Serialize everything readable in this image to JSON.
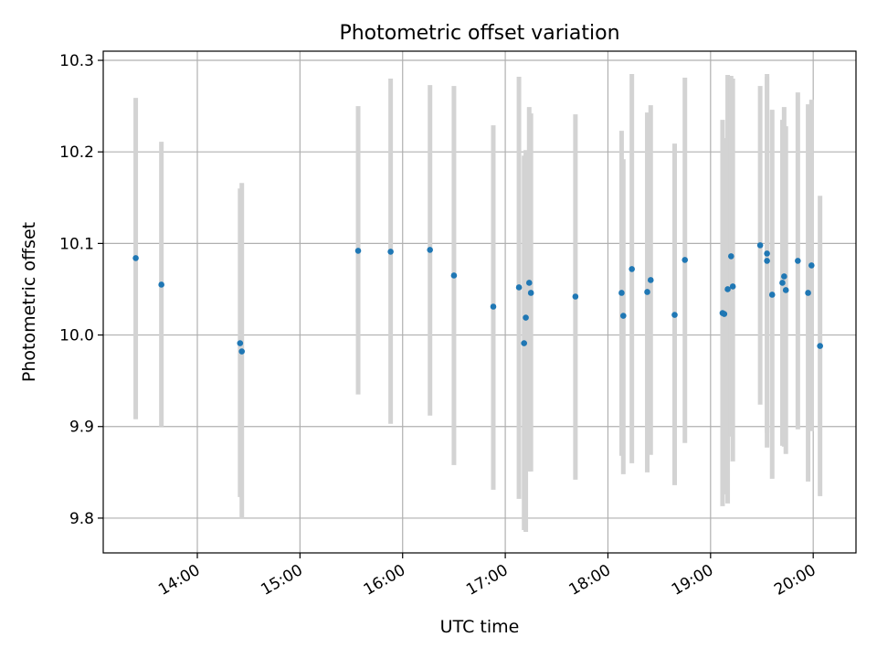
{
  "chart_data": {
    "type": "scatter",
    "title": "Photometric offset variation",
    "xlabel": "UTC time",
    "ylabel": "Photometric offset",
    "grid": true,
    "xlim": [
      "13:05",
      "20:25"
    ],
    "ylim": [
      9.762,
      10.31
    ],
    "x_ticks": [
      "14:00",
      "15:00",
      "16:00",
      "17:00",
      "18:00",
      "19:00",
      "20:00"
    ],
    "y_ticks": [
      9.8,
      9.9,
      10.0,
      10.1,
      10.2,
      10.3
    ],
    "y_tick_labels": [
      "9.8",
      "9.9",
      "10.0",
      "10.1",
      "10.2",
      "10.3"
    ],
    "marker_color": "#1f77b4",
    "errorbar_color": "#d3d3d3",
    "points": [
      {
        "x": "13:24",
        "y": 10.084,
        "ylow": 9.908,
        "yhigh": 10.259
      },
      {
        "x": "13:39",
        "y": 10.055,
        "ylow": 9.9,
        "yhigh": 10.211
      },
      {
        "x": "14:25",
        "y": 9.991,
        "ylow": 9.823,
        "yhigh": 10.16
      },
      {
        "x": "14:26",
        "y": 9.982,
        "ylow": 9.799,
        "yhigh": 10.166
      },
      {
        "x": "15:34",
        "y": 10.092,
        "ylow": 9.935,
        "yhigh": 10.25
      },
      {
        "x": "15:53",
        "y": 10.091,
        "ylow": 9.903,
        "yhigh": 10.28
      },
      {
        "x": "16:16",
        "y": 10.093,
        "ylow": 9.912,
        "yhigh": 10.273
      },
      {
        "x": "16:30",
        "y": 10.065,
        "ylow": 9.858,
        "yhigh": 10.272
      },
      {
        "x": "16:53",
        "y": 10.031,
        "ylow": 9.831,
        "yhigh": 10.229
      },
      {
        "x": "17:08",
        "y": 10.052,
        "ylow": 9.821,
        "yhigh": 10.282
      },
      {
        "x": "17:11",
        "y": 9.991,
        "ylow": 9.787,
        "yhigh": 10.196
      },
      {
        "x": "17:12",
        "y": 10.019,
        "ylow": 9.785,
        "yhigh": 10.202
      },
      {
        "x": "17:14",
        "y": 10.057,
        "ylow": 9.851,
        "yhigh": 10.249
      },
      {
        "x": "17:15",
        "y": 10.046,
        "ylow": 9.851,
        "yhigh": 10.242
      },
      {
        "x": "17:41",
        "y": 10.042,
        "ylow": 9.842,
        "yhigh": 10.241
      },
      {
        "x": "18:08",
        "y": 10.046,
        "ylow": 9.868,
        "yhigh": 10.223
      },
      {
        "x": "18:09",
        "y": 10.021,
        "ylow": 9.848,
        "yhigh": 10.192
      },
      {
        "x": "18:14",
        "y": 10.072,
        "ylow": 9.86,
        "yhigh": 10.285
      },
      {
        "x": "18:23",
        "y": 10.047,
        "ylow": 9.85,
        "yhigh": 10.243
      },
      {
        "x": "18:25",
        "y": 10.06,
        "ylow": 9.869,
        "yhigh": 10.251
      },
      {
        "x": "18:39",
        "y": 10.022,
        "ylow": 9.836,
        "yhigh": 10.209
      },
      {
        "x": "18:45",
        "y": 10.082,
        "ylow": 9.882,
        "yhigh": 10.281
      },
      {
        "x": "19:07",
        "y": 10.024,
        "ylow": 9.813,
        "yhigh": 10.235
      },
      {
        "x": "19:08",
        "y": 10.023,
        "ylow": 9.826,
        "yhigh": 10.215
      },
      {
        "x": "19:10",
        "y": 10.05,
        "ylow": 9.816,
        "yhigh": 10.284
      },
      {
        "x": "19:12",
        "y": 10.086,
        "ylow": 9.889,
        "yhigh": 10.283
      },
      {
        "x": "19:13",
        "y": 10.053,
        "ylow": 9.862,
        "yhigh": 10.28
      },
      {
        "x": "19:29",
        "y": 10.098,
        "ylow": 9.924,
        "yhigh": 10.272
      },
      {
        "x": "19:33",
        "y": 10.081,
        "ylow": 9.877,
        "yhigh": 10.285
      },
      {
        "x": "19:33",
        "y": 10.089,
        "ylow": 9.893,
        "yhigh": 10.282
      },
      {
        "x": "19:36",
        "y": 10.044,
        "ylow": 9.843,
        "yhigh": 10.246
      },
      {
        "x": "19:42",
        "y": 10.057,
        "ylow": 9.879,
        "yhigh": 10.235
      },
      {
        "x": "19:43",
        "y": 10.064,
        "ylow": 9.878,
        "yhigh": 10.249
      },
      {
        "x": "19:44",
        "y": 10.049,
        "ylow": 9.87,
        "yhigh": 10.228
      },
      {
        "x": "19:51",
        "y": 10.081,
        "ylow": 9.897,
        "yhigh": 10.265
      },
      {
        "x": "19:57",
        "y": 10.046,
        "ylow": 9.84,
        "yhigh": 10.252
      },
      {
        "x": "19:59",
        "y": 10.076,
        "ylow": 9.895,
        "yhigh": 10.257
      },
      {
        "x": "20:04",
        "y": 9.988,
        "ylow": 9.824,
        "yhigh": 10.152
      }
    ]
  }
}
